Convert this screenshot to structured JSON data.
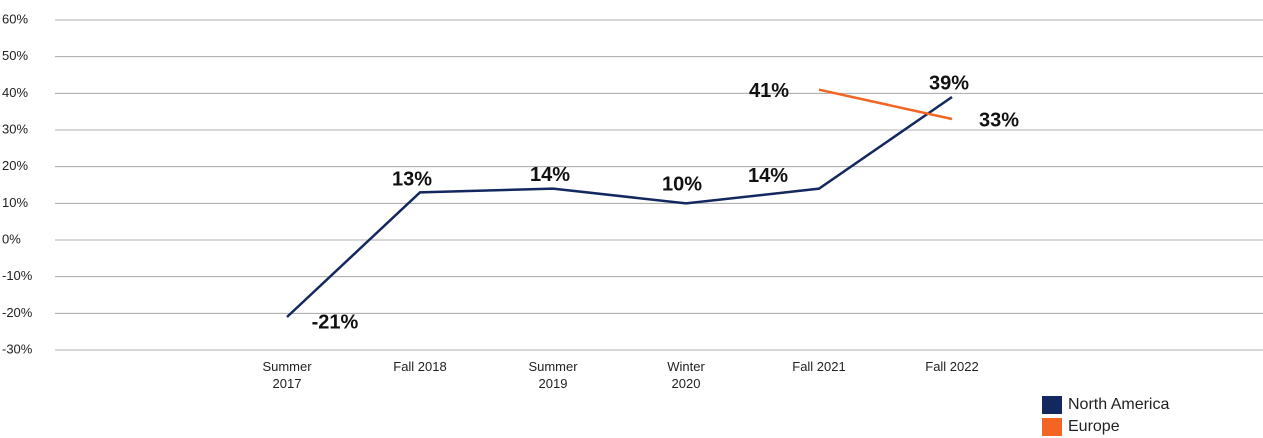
{
  "chart_data": {
    "type": "line",
    "categories": [
      "Summer 2017",
      "Fall 2018",
      "Summer 2019",
      "Winter 2020",
      "Fall 2021",
      "Fall 2022"
    ],
    "series": [
      {
        "name": "North America",
        "color": "#13285e",
        "values": [
          -21,
          13,
          14,
          10,
          14,
          39
        ],
        "value_labels": [
          "-21%",
          "13%",
          "14%",
          "10%",
          "14%",
          "39%"
        ]
      },
      {
        "name": "Europe",
        "color": "#f26522",
        "values": [
          null,
          null,
          null,
          null,
          41,
          33
        ],
        "value_labels": [
          null,
          null,
          null,
          null,
          "41%",
          "33%"
        ]
      }
    ],
    "ylim": [
      -30,
      60
    ],
    "yticks": [
      {
        "value": -30,
        "label": "-30%"
      },
      {
        "value": -20,
        "label": "-20%"
      },
      {
        "value": -10,
        "label": "-10%"
      },
      {
        "value": 0,
        "label": "0%"
      },
      {
        "value": 10,
        "label": "10%"
      },
      {
        "value": 20,
        "label": "20%"
      },
      {
        "value": 30,
        "label": "30%"
      },
      {
        "value": 40,
        "label": "40%"
      },
      {
        "value": 50,
        "label": "50%"
      },
      {
        "value": 60,
        "label": "60%"
      }
    ],
    "grid": true
  }
}
